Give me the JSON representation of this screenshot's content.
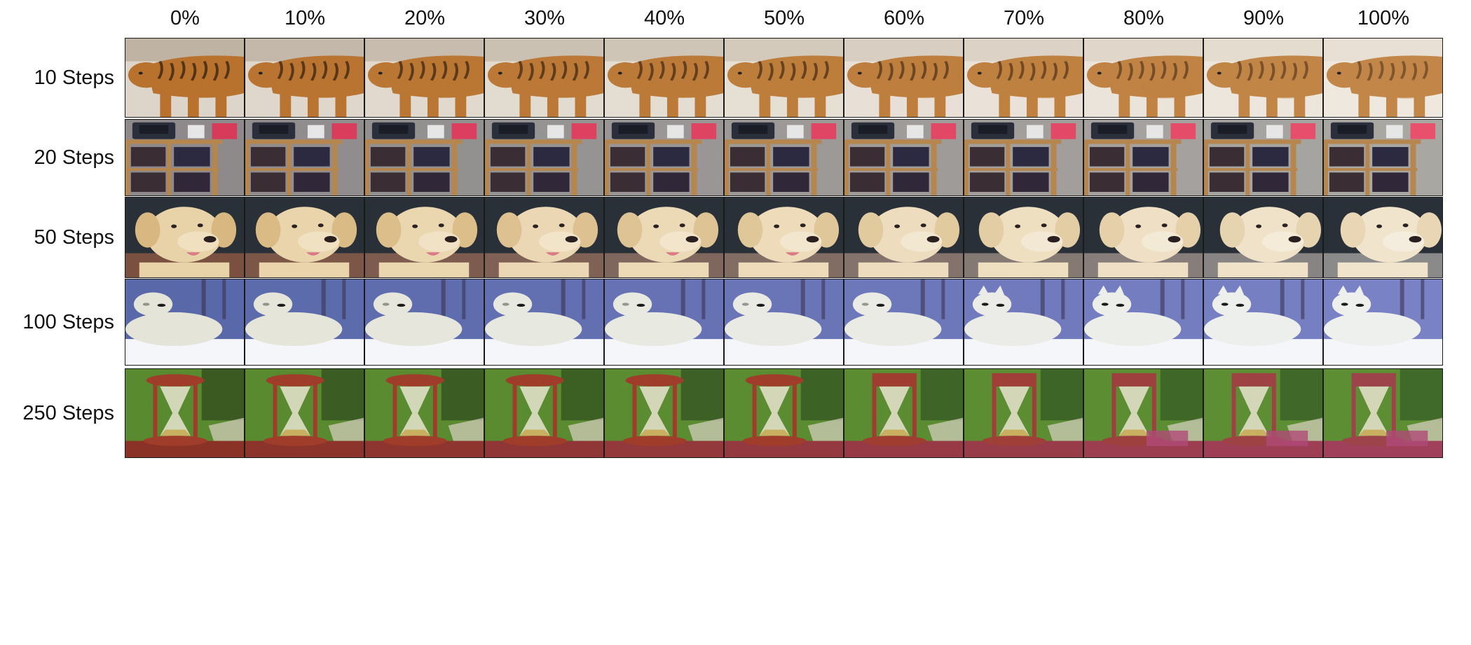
{
  "columns": [
    "0%",
    "10%",
    "20%",
    "30%",
    "40%",
    "50%",
    "60%",
    "70%",
    "80%",
    "90%",
    "100%"
  ],
  "rows": [
    {
      "label": "10 Steps",
      "subject": "tiger-in-snow"
    },
    {
      "label": "20 Steps",
      "subject": "shelf-with-printers"
    },
    {
      "label": "50 Steps",
      "subject": "golden-retriever"
    },
    {
      "label": "100 Steps",
      "subject": "arctic-fox-in-snow"
    },
    {
      "label": "250 Steps",
      "subject": "hourglass-on-grass"
    }
  ],
  "colors": {
    "grid_border": "#1a1a1a",
    "tiger_bg": "#ddd5ca",
    "tiger_fur": "#b8722e",
    "tiger_stripe": "#3a2412",
    "shelf_bg": "#8e8a8c",
    "shelf_wood": "#b6864f",
    "shelf_device": "#2b2f3c",
    "shelf_pink": "#d83a5a",
    "dog_bg": "#2a3038",
    "dog_fur": "#e8d2a8",
    "dog_nose": "#2a2020",
    "dog_tongue": "#d97a86",
    "fox_bg": "#5868a8",
    "fox_fur": "#eef0ee",
    "fox_snow": "#f4f6fa",
    "hourglass_grass": "#5a8a30",
    "hourglass_wood": "#a03c2a",
    "hourglass_glass": "#e8e4d0",
    "hourglass_sand": "#c8b060"
  }
}
